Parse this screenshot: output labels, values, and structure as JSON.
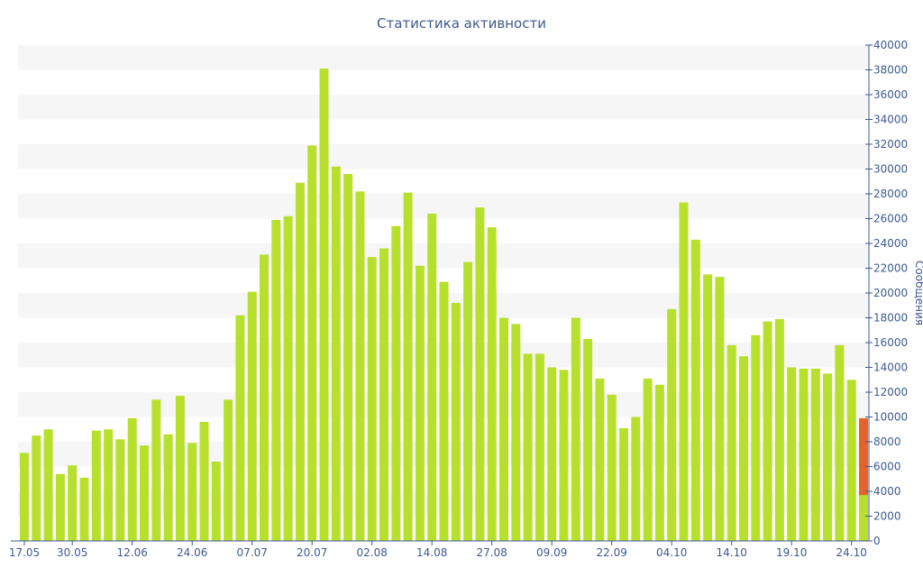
{
  "colors": {
    "bar": "#b7e02c",
    "highlight": "#e5632b",
    "text": "#3d5a8f",
    "band": "#f6f6f6",
    "axis": "#3d5a8f"
  },
  "chart_data": {
    "type": "bar",
    "title": "Статистика активности",
    "ylabel": "Сообщения",
    "ylim": [
      0,
      40000
    ],
    "y_ticks": [
      0,
      2000,
      4000,
      6000,
      8000,
      10000,
      12000,
      14000,
      16000,
      18000,
      20000,
      22000,
      24000,
      26000,
      28000,
      30000,
      32000,
      34000,
      36000,
      38000,
      40000
    ],
    "y_axis_position": "right",
    "grid": "alternating horizontal bands",
    "x_tick_labels": [
      {
        "label": "17.05",
        "index": 0
      },
      {
        "label": "30.05",
        "index": 4
      },
      {
        "label": "12.06",
        "index": 9
      },
      {
        "label": "24.06",
        "index": 14
      },
      {
        "label": "07.07",
        "index": 19
      },
      {
        "label": "20.07",
        "index": 24
      },
      {
        "label": "02.08",
        "index": 29
      },
      {
        "label": "14.08",
        "index": 34
      },
      {
        "label": "27.08",
        "index": 39
      },
      {
        "label": "09.09",
        "index": 44
      },
      {
        "label": "22.09",
        "index": 49
      },
      {
        "label": "04.10",
        "index": 54
      },
      {
        "label": "14.10",
        "index": 59
      },
      {
        "label": "19.10",
        "index": 64
      },
      {
        "label": "24.10",
        "index": 69
      }
    ],
    "values": [
      7100,
      8500,
      9000,
      5400,
      6100,
      5100,
      8900,
      9000,
      8200,
      9900,
      7700,
      11400,
      8600,
      11700,
      7900,
      9600,
      6400,
      11400,
      18200,
      20100,
      23100,
      25900,
      26200,
      28900,
      31900,
      38100,
      30200,
      29600,
      28200,
      22900,
      23600,
      25400,
      28100,
      22200,
      26400,
      20900,
      19200,
      22500,
      26900,
      25300,
      18000,
      17500,
      15100,
      15100,
      14000,
      13800,
      18000,
      16300,
      13100,
      11800,
      9100,
      10000,
      13100,
      12600,
      18700,
      27300,
      24300,
      21500,
      21300,
      15800,
      14900,
      16600,
      17700,
      17900,
      14000,
      13900,
      13900,
      13500,
      15800,
      13000,
      9900
    ],
    "last_bar_highlight_value": 6200
  }
}
